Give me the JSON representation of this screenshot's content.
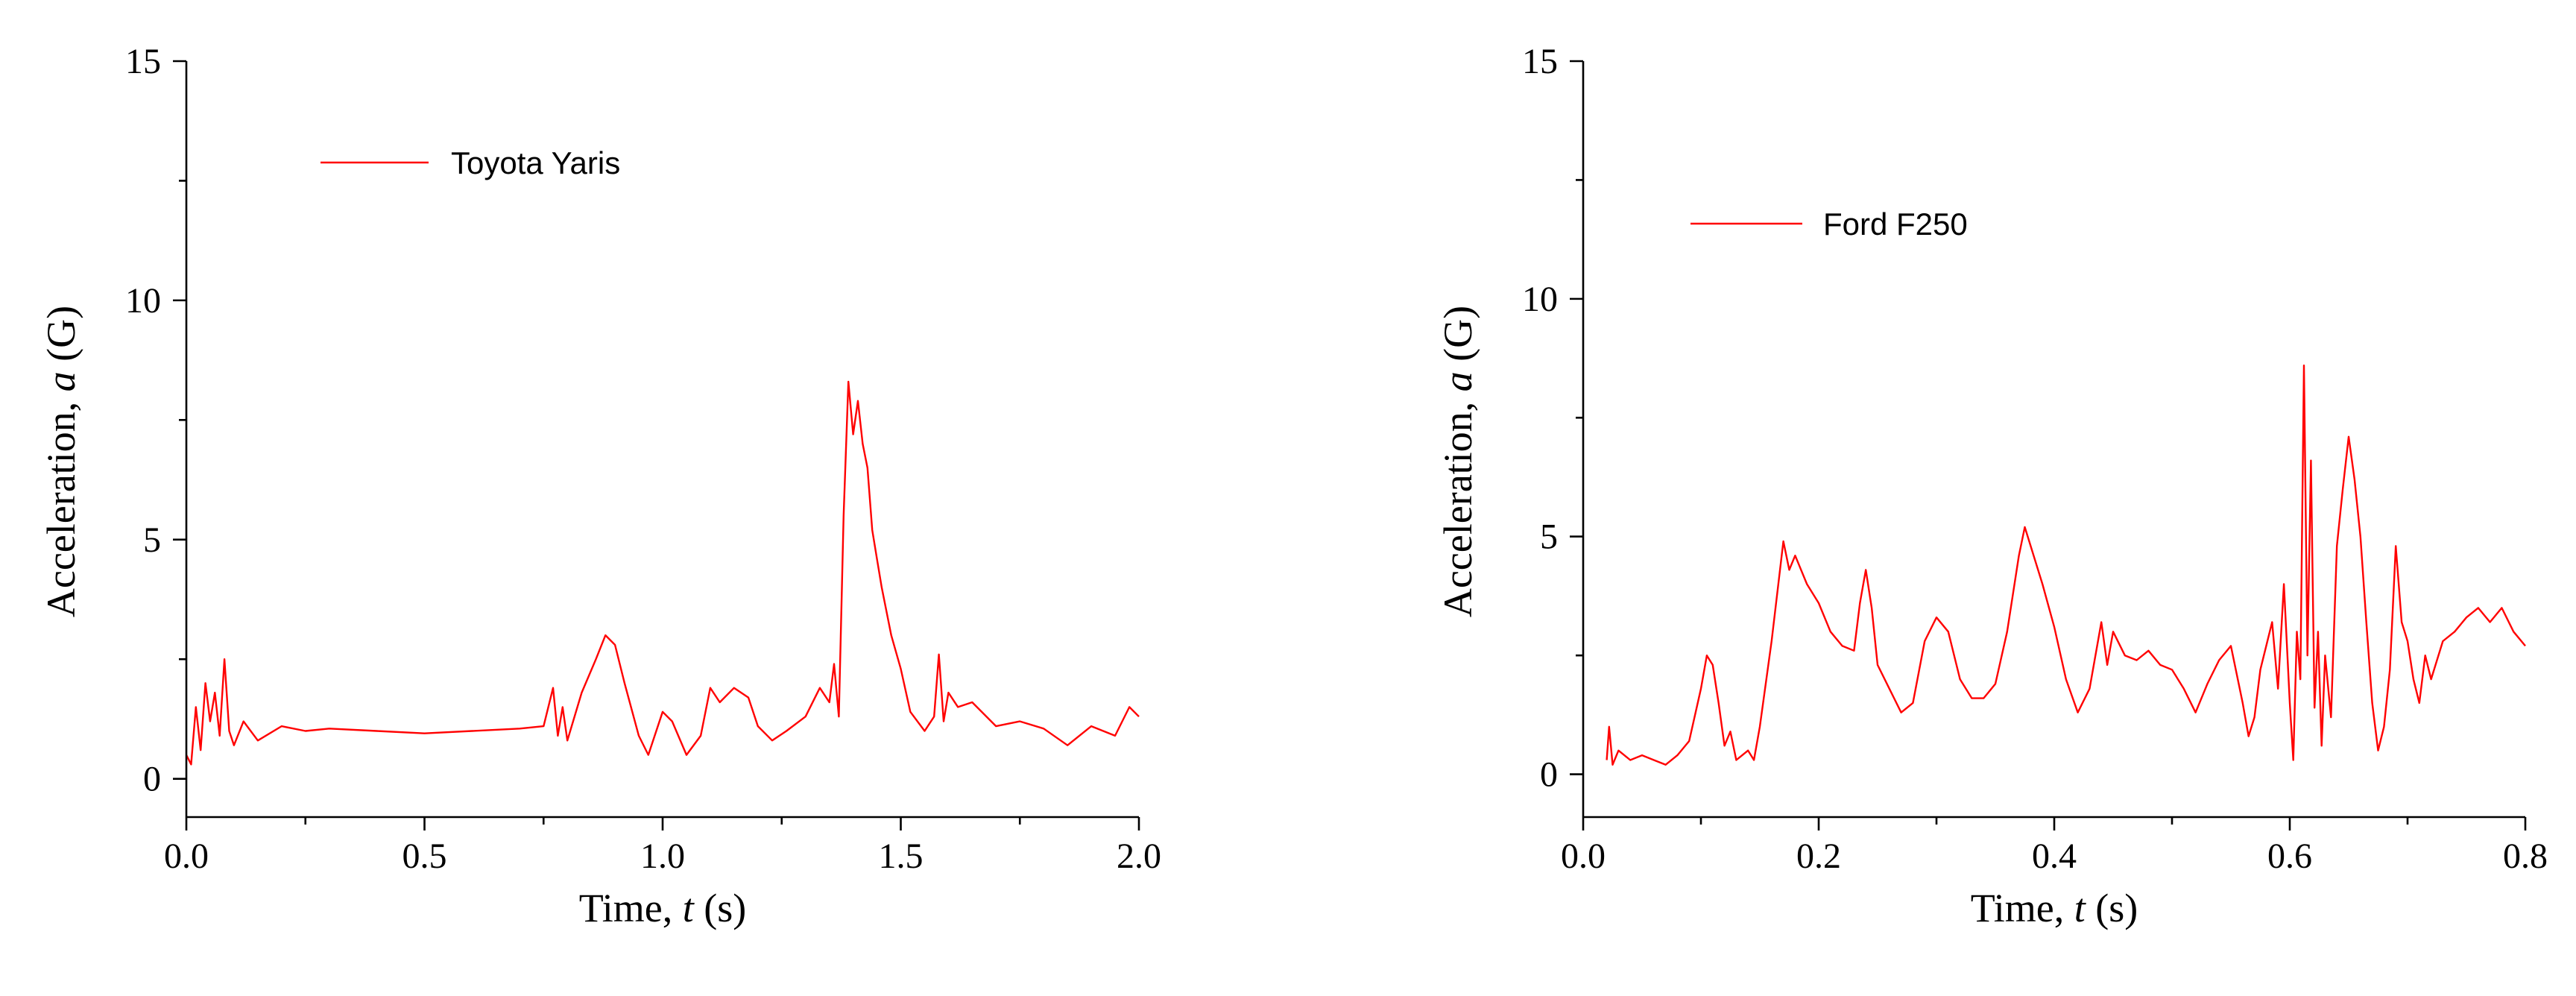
{
  "chart_data": [
    {
      "type": "line",
      "xlabel": {
        "prefix": "Time, ",
        "var": "t",
        "suffix": " (s)"
      },
      "ylabel": {
        "prefix": "Acceleration, ",
        "var": "a",
        "suffix": " (G)"
      },
      "xlim": [
        0,
        2.0
      ],
      "ylim": [
        -0.8,
        15
      ],
      "x_ticks": [
        0.0,
        0.5,
        1.0,
        1.5,
        2.0
      ],
      "x_tick_labels": [
        "0.0",
        "0.5",
        "1.0",
        "1.5",
        "2.0"
      ],
      "y_ticks": [
        0,
        5,
        10,
        15
      ],
      "y_tick_labels": [
        "0",
        "5",
        "10",
        "15"
      ],
      "grid": false,
      "legend_position": "top-left",
      "series": [
        {
          "name": "Toyota Yaris",
          "color": "#ff0000",
          "x": [
            0.0,
            0.01,
            0.02,
            0.03,
            0.04,
            0.05,
            0.06,
            0.07,
            0.08,
            0.09,
            0.1,
            0.12,
            0.15,
            0.2,
            0.25,
            0.3,
            0.4,
            0.5,
            0.6,
            0.7,
            0.75,
            0.77,
            0.78,
            0.79,
            0.8,
            0.83,
            0.86,
            0.88,
            0.9,
            0.92,
            0.95,
            0.97,
            1.0,
            1.02,
            1.05,
            1.08,
            1.1,
            1.12,
            1.15,
            1.18,
            1.2,
            1.23,
            1.26,
            1.3,
            1.33,
            1.35,
            1.36,
            1.37,
            1.38,
            1.39,
            1.4,
            1.41,
            1.42,
            1.43,
            1.44,
            1.45,
            1.46,
            1.48,
            1.5,
            1.52,
            1.55,
            1.57,
            1.58,
            1.59,
            1.6,
            1.62,
            1.65,
            1.7,
            1.75,
            1.8,
            1.85,
            1.9,
            1.95,
            1.98,
            2.0
          ],
          "y": [
            0.5,
            0.3,
            1.5,
            0.6,
            2.0,
            1.2,
            1.8,
            0.9,
            2.5,
            1.0,
            0.7,
            1.2,
            0.8,
            1.1,
            1.0,
            1.05,
            1.0,
            0.95,
            1.0,
            1.05,
            1.1,
            1.9,
            0.9,
            1.5,
            0.8,
            1.8,
            2.5,
            3.0,
            2.8,
            2.0,
            0.9,
            0.5,
            1.4,
            1.2,
            0.5,
            0.9,
            1.9,
            1.6,
            1.9,
            1.7,
            1.1,
            0.8,
            1.0,
            1.3,
            1.9,
            1.6,
            2.4,
            1.3,
            5.5,
            8.3,
            7.2,
            7.9,
            7.0,
            6.5,
            5.2,
            4.6,
            4.0,
            3.0,
            2.3,
            1.4,
            1.0,
            1.3,
            2.6,
            1.2,
            1.8,
            1.5,
            1.6,
            1.1,
            1.2,
            1.05,
            0.7,
            1.1,
            0.9,
            1.5,
            1.3
          ]
        }
      ]
    },
    {
      "type": "line",
      "xlabel": {
        "prefix": "Time, ",
        "var": "t",
        "suffix": " (s)"
      },
      "ylabel": {
        "prefix": "Acceleration, ",
        "var": "a",
        "suffix": " (G)"
      },
      "xlim": [
        0,
        0.8
      ],
      "ylim": [
        -0.9,
        15
      ],
      "x_ticks": [
        0.0,
        0.2,
        0.4,
        0.6,
        0.8
      ],
      "x_tick_labels": [
        "0.0",
        "0.2",
        "0.4",
        "0.6",
        "0.8"
      ],
      "y_ticks": [
        0,
        5,
        10,
        15
      ],
      "y_tick_labels": [
        "0",
        "5",
        "10",
        "15"
      ],
      "grid": false,
      "legend_position": "top-left",
      "series": [
        {
          "name": "Ford F250",
          "color": "#ff0000",
          "x": [
            0.02,
            0.022,
            0.025,
            0.03,
            0.04,
            0.05,
            0.06,
            0.07,
            0.08,
            0.09,
            0.1,
            0.105,
            0.11,
            0.115,
            0.12,
            0.125,
            0.13,
            0.14,
            0.145,
            0.15,
            0.16,
            0.17,
            0.175,
            0.18,
            0.19,
            0.2,
            0.21,
            0.22,
            0.23,
            0.235,
            0.24,
            0.245,
            0.25,
            0.26,
            0.27,
            0.28,
            0.29,
            0.3,
            0.31,
            0.32,
            0.33,
            0.34,
            0.35,
            0.36,
            0.37,
            0.375,
            0.38,
            0.39,
            0.4,
            0.41,
            0.42,
            0.43,
            0.44,
            0.445,
            0.45,
            0.46,
            0.47,
            0.48,
            0.49,
            0.5,
            0.51,
            0.52,
            0.53,
            0.54,
            0.55,
            0.56,
            0.565,
            0.57,
            0.575,
            0.58,
            0.585,
            0.59,
            0.595,
            0.6,
            0.603,
            0.606,
            0.609,
            0.612,
            0.615,
            0.618,
            0.621,
            0.624,
            0.627,
            0.63,
            0.635,
            0.64,
            0.645,
            0.65,
            0.655,
            0.66,
            0.665,
            0.67,
            0.675,
            0.68,
            0.685,
            0.69,
            0.695,
            0.7,
            0.705,
            0.71,
            0.715,
            0.72,
            0.73,
            0.74,
            0.75,
            0.76,
            0.77,
            0.78,
            0.79,
            0.8
          ],
          "y": [
            0.3,
            1.0,
            0.2,
            0.5,
            0.3,
            0.4,
            0.3,
            0.2,
            0.4,
            0.7,
            1.8,
            2.5,
            2.3,
            1.5,
            0.6,
            0.9,
            0.3,
            0.5,
            0.3,
            1.0,
            2.8,
            4.9,
            4.3,
            4.6,
            4.0,
            3.6,
            3.0,
            2.7,
            2.6,
            3.6,
            4.3,
            3.5,
            2.3,
            1.8,
            1.3,
            1.5,
            2.8,
            3.3,
            3.0,
            2.0,
            1.6,
            1.6,
            1.9,
            3.0,
            4.6,
            5.2,
            4.8,
            4.0,
            3.1,
            2.0,
            1.3,
            1.8,
            3.2,
            2.3,
            3.0,
            2.5,
            2.4,
            2.6,
            2.3,
            2.2,
            1.8,
            1.3,
            1.9,
            2.4,
            2.7,
            1.5,
            0.8,
            1.2,
            2.2,
            2.7,
            3.2,
            1.8,
            4.0,
            1.5,
            0.3,
            3.0,
            2.0,
            8.6,
            2.5,
            6.6,
            1.4,
            3.0,
            0.6,
            2.5,
            1.2,
            4.8,
            6.0,
            7.1,
            6.2,
            5.0,
            3.2,
            1.5,
            0.5,
            1.0,
            2.2,
            4.8,
            3.2,
            2.8,
            2.0,
            1.5,
            2.5,
            2.0,
            2.8,
            3.0,
            3.3,
            3.5,
            3.2,
            3.5,
            3.0,
            2.7
          ]
        }
      ]
    }
  ]
}
